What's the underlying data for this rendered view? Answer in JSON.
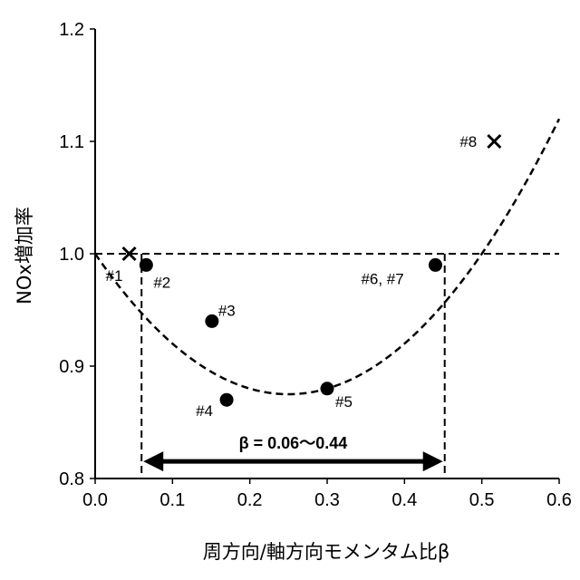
{
  "chart_data": {
    "type": "scatter",
    "xlabel": "周方向/軸方向モメンタム比β",
    "ylabel": "NOx増加率",
    "xlim": [
      0.0,
      0.6
    ],
    "ylim": [
      0.8,
      1.2
    ],
    "x_ticks": [
      "0.0",
      "0.1",
      "0.2",
      "0.3",
      "0.4",
      "0.5",
      "0.6"
    ],
    "y_ticks": [
      "0.8",
      "0.9",
      "1.0",
      "1.1",
      "1.2"
    ],
    "grid": false,
    "points": [
      {
        "label": "#1",
        "x": 0.044,
        "y": 1.0,
        "marker": "x"
      },
      {
        "label": "#2",
        "x": 0.066,
        "y": 0.99,
        "marker": "circle"
      },
      {
        "label": "#3",
        "x": 0.151,
        "y": 0.94,
        "marker": "circle"
      },
      {
        "label": "#4",
        "x": 0.17,
        "y": 0.87,
        "marker": "circle"
      },
      {
        "label": "#5",
        "x": 0.3,
        "y": 0.88,
        "marker": "circle"
      },
      {
        "label": "#6, #7",
        "x": 0.44,
        "y": 0.99,
        "marker": "circle"
      },
      {
        "label": "#8",
        "x": 0.516,
        "y": 1.1,
        "marker": "x"
      }
    ],
    "fit_curve": {
      "style": "dashed",
      "form": "quadratic",
      "vertex_x": 0.25,
      "vertex_y": 0.875,
      "coefficient": 2.0
    },
    "reference_line": {
      "y": 1.0,
      "style": "dashed"
    },
    "range_markers": {
      "x_low": 0.06,
      "x_high": 0.452,
      "style": "dashed"
    },
    "range_annotation": {
      "text": "β = 0.06〜0.44",
      "x_from": 0.06,
      "x_to": 0.452,
      "y": 0.812
    }
  }
}
